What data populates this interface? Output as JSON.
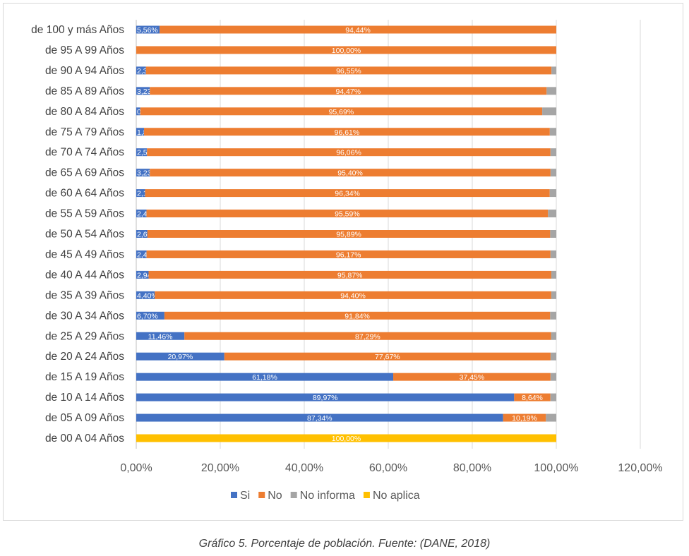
{
  "chart_data": {
    "type": "bar",
    "orientation": "horizontal",
    "stacked": true,
    "categories": [
      "de 100 y más Años",
      "de 95 A 99 Años",
      "de 90 A 94 Años",
      "de 85 A 89 Años",
      "de 80 A 84 Años",
      "de 75 A 79 Años",
      "de 70 A 74 Años",
      "de 65 A 69 Años",
      "de 60 A 64 Años",
      "de 55 A 59 Años",
      "de 50 A 54 Años",
      "de 45 A 49 Años",
      "de 40 A 44 Años",
      "de 35 A 39 Años",
      "de 30 A 34 Años",
      "de 25 A 29 Años",
      "de 20 A 24 Años",
      "de 15 A 19 Años",
      "de 10 A 14 Años",
      "de 05 A 09 Años",
      "de 00 A 04 Años"
    ],
    "series": [
      {
        "name": "Si",
        "color": "#4472c4",
        "values": [
          5.56,
          0,
          2.3,
          3.23,
          0.96,
          1.85,
          2.56,
          3.23,
          2.1,
          2.44,
          2.66,
          2.45,
          2.94,
          4.4,
          6.7,
          11.46,
          20.97,
          61.18,
          89.97,
          87.34,
          0
        ],
        "labels": [
          "5,56%",
          "",
          "2,30%",
          "3,23%",
          "0,96%",
          "1,85%",
          "2,56%",
          "3,23%",
          "2,10%",
          "2,44%",
          "2,66%",
          "2,45%",
          "2,94%",
          "4,40%",
          "6,70%",
          "11,46%",
          "20,97%",
          "61,18%",
          "89,97%",
          "87,34%",
          ""
        ]
      },
      {
        "name": "No",
        "color": "#ed7d31",
        "values": [
          94.44,
          100,
          96.55,
          94.47,
          95.69,
          96.61,
          96.06,
          95.4,
          96.34,
          95.59,
          95.89,
          96.17,
          95.87,
          94.4,
          91.84,
          87.29,
          77.67,
          37.45,
          8.64,
          10.19,
          0
        ],
        "labels": [
          "94,44%",
          "100,00%",
          "96,55%",
          "94,47%",
          "95,69%",
          "96,61%",
          "96,06%",
          "95,40%",
          "96,34%",
          "95,59%",
          "95,89%",
          "96,17%",
          "95,87%",
          "94,40%",
          "91,84%",
          "87,29%",
          "77,67%",
          "37,45%",
          "8,64%",
          "10,19%",
          ""
        ]
      },
      {
        "name": "No informa",
        "color": "#a5a5a5",
        "values": [
          0,
          0,
          1.15,
          2.3,
          3.35,
          1.54,
          1.38,
          1.37,
          1.56,
          1.97,
          1.45,
          1.38,
          1.19,
          1.2,
          1.46,
          1.25,
          1.36,
          1.37,
          1.39,
          2.47,
          0
        ],
        "labels": [
          "",
          "",
          "",
          "",
          "",
          "",
          "",
          "",
          "",
          "",
          "",
          "",
          "",
          "",
          "",
          "",
          "",
          "",
          "",
          "",
          ""
        ]
      },
      {
        "name": "No aplica",
        "color": "#ffc000",
        "values": [
          0,
          0,
          0,
          0,
          0,
          0,
          0,
          0,
          0,
          0,
          0,
          0,
          0,
          0,
          0,
          0,
          0,
          0,
          0,
          0,
          100
        ],
        "labels": [
          "",
          "",
          "",
          "",
          "",
          "",
          "",
          "",
          "",
          "",
          "",
          "",
          "",
          "",
          "",
          "",
          "",
          "",
          "",
          "",
          "100,00%"
        ]
      }
    ],
    "xlim": [
      0,
      120
    ],
    "xticks": [
      "0,00%",
      "20,00%",
      "40,00%",
      "60,00%",
      "80,00%",
      "100,00%",
      "120,00%"
    ],
    "grid": true,
    "legend_position": "bottom"
  },
  "caption": "Gráfico 5. Porcentaje de población. Fuente: (DANE, 2018)"
}
